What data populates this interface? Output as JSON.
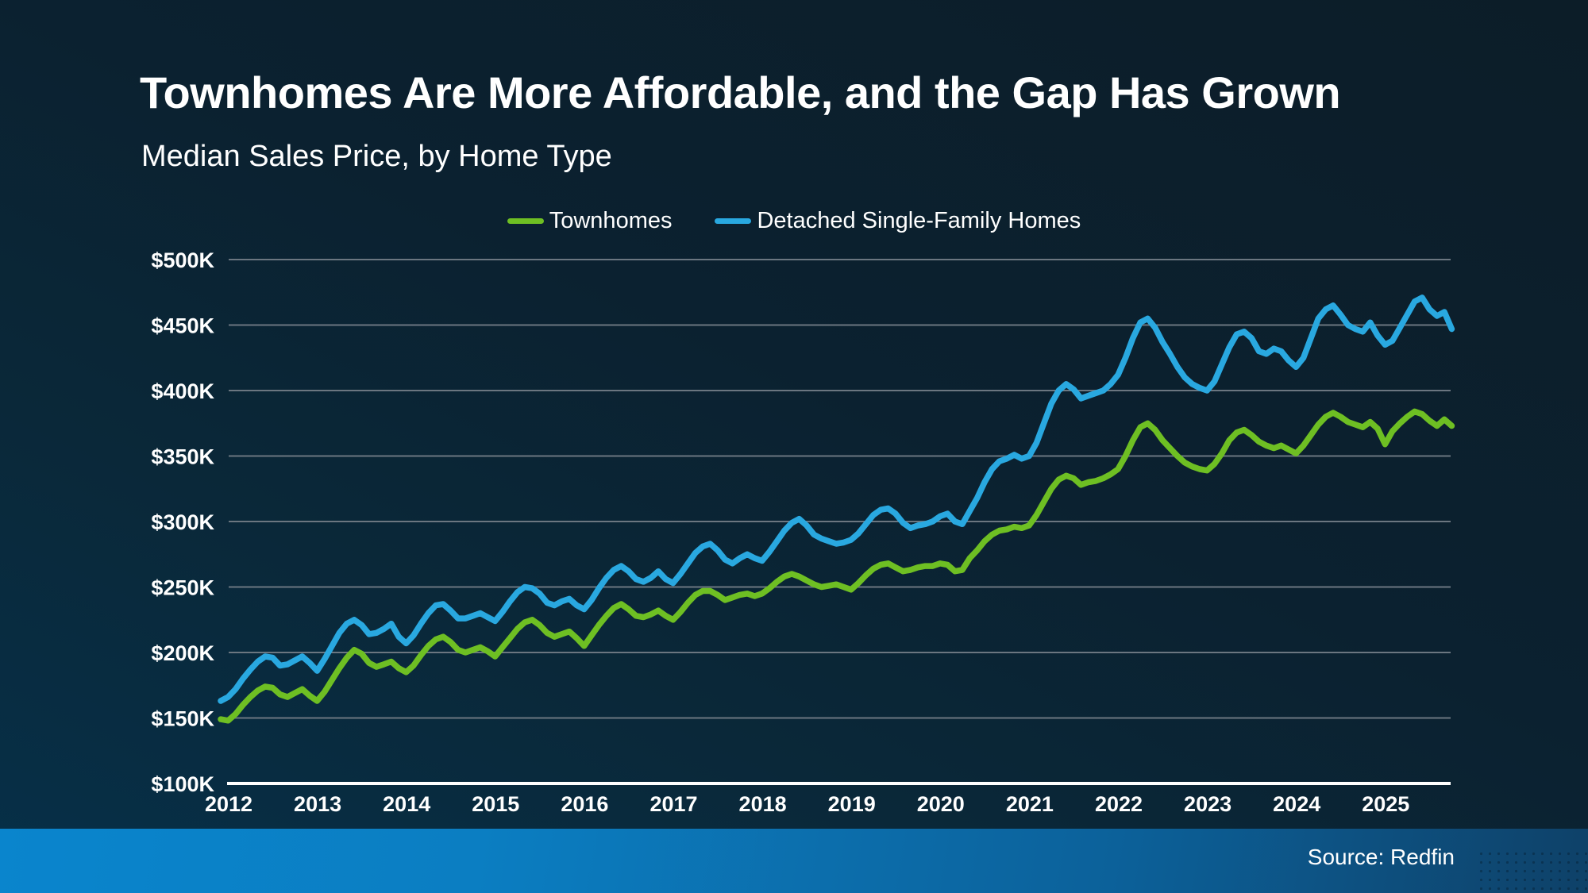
{
  "page": {
    "title": "Townhomes Are More Affordable, and the Gap Has Grown",
    "subtitle": "Median Sales Price, by Home Type",
    "source": "Source: Redfin"
  },
  "colors": {
    "background_top": "#0c1d28",
    "background_bottom": "#063049",
    "gridline": "#6b7680",
    "axis_line": "#ffffff",
    "text": "#ffffff",
    "bottom_bar_left": "#0a85cd",
    "bottom_bar_right": "#0e4168"
  },
  "chart_data": {
    "type": "line",
    "title": "Townhomes Are More Affordable, and the Gap Has Grown",
    "subtitle": "Median Sales Price, by Home Type",
    "x_interval": "monthly",
    "x_start": "2012-01",
    "x_end": "2025-11",
    "x_tick_labels": [
      "2012",
      "2013",
      "2014",
      "2015",
      "2016",
      "2017",
      "2018",
      "2019",
      "2020",
      "2021",
      "2022",
      "2023",
      "2024",
      "2025"
    ],
    "y_tick_values": [
      100,
      150,
      200,
      250,
      300,
      350,
      400,
      450,
      500
    ],
    "y_tick_labels": [
      "$100K",
      "$150K",
      "$200K",
      "$250K",
      "$300K",
      "$350K",
      "$400K",
      "$450K",
      "$500K"
    ],
    "y_unit": "USD thousands",
    "ylim": [
      100,
      520
    ],
    "grid": true,
    "legend_position": "top-center",
    "series": [
      {
        "name": "Townhomes",
        "color": "#6ebf23",
        "values": [
          149,
          148,
          153,
          160,
          166,
          171,
          174,
          173,
          168,
          166,
          169,
          172,
          167,
          163,
          170,
          179,
          188,
          196,
          202,
          199,
          192,
          189,
          191,
          193,
          188,
          185,
          190,
          198,
          205,
          210,
          212,
          208,
          202,
          200,
          202,
          204,
          201,
          197,
          204,
          211,
          218,
          223,
          225,
          221,
          215,
          212,
          214,
          216,
          211,
          205,
          213,
          221,
          228,
          234,
          237,
          233,
          228,
          227,
          229,
          232,
          228,
          225,
          231,
          238,
          244,
          247,
          247,
          244,
          240,
          242,
          244,
          245,
          243,
          245,
          249,
          254,
          258,
          260,
          258,
          255,
          252,
          250,
          251,
          252,
          250,
          248,
          253,
          259,
          264,
          267,
          268,
          265,
          262,
          263,
          265,
          266,
          266,
          268,
          267,
          262,
          263,
          272,
          278,
          285,
          290,
          293,
          294,
          296,
          295,
          297,
          305,
          315,
          325,
          332,
          335,
          333,
          328,
          330,
          331,
          333,
          336,
          340,
          350,
          362,
          372,
          375,
          370,
          362,
          356,
          350,
          345,
          342,
          340,
          339,
          344,
          352,
          362,
          368,
          370,
          366,
          361,
          358,
          356,
          358,
          355,
          352,
          358,
          366,
          374,
          380,
          383,
          380,
          376,
          374,
          372,
          376,
          371,
          359,
          369,
          375,
          380,
          384,
          382,
          377,
          373,
          378,
          373
        ]
      },
      {
        "name": "Detached Single-Family Homes",
        "color": "#29a8e0",
        "values": [
          163,
          166,
          172,
          180,
          187,
          193,
          197,
          196,
          190,
          191,
          194,
          197,
          192,
          186,
          195,
          205,
          215,
          222,
          225,
          221,
          214,
          215,
          218,
          222,
          212,
          207,
          213,
          222,
          230,
          236,
          237,
          232,
          226,
          226,
          228,
          230,
          227,
          224,
          231,
          239,
          246,
          250,
          249,
          245,
          238,
          236,
          239,
          241,
          236,
          233,
          240,
          249,
          257,
          263,
          266,
          262,
          256,
          254,
          257,
          262,
          256,
          253,
          260,
          268,
          276,
          281,
          283,
          278,
          271,
          268,
          272,
          275,
          272,
          270,
          277,
          285,
          293,
          299,
          302,
          297,
          290,
          287,
          285,
          283,
          284,
          286,
          291,
          298,
          305,
          309,
          310,
          306,
          299,
          295,
          297,
          298,
          300,
          304,
          306,
          300,
          298,
          308,
          318,
          330,
          340,
          346,
          348,
          351,
          348,
          350,
          360,
          375,
          390,
          400,
          405,
          401,
          394,
          396,
          398,
          400,
          405,
          412,
          425,
          440,
          452,
          455,
          448,
          437,
          428,
          418,
          410,
          405,
          402,
          400,
          407,
          420,
          433,
          443,
          445,
          440,
          430,
          428,
          432,
          430,
          423,
          418,
          425,
          440,
          455,
          462,
          465,
          458,
          450,
          447,
          445,
          452,
          442,
          435,
          438,
          448,
          458,
          468,
          471,
          462,
          457,
          460,
          447
        ]
      }
    ]
  }
}
